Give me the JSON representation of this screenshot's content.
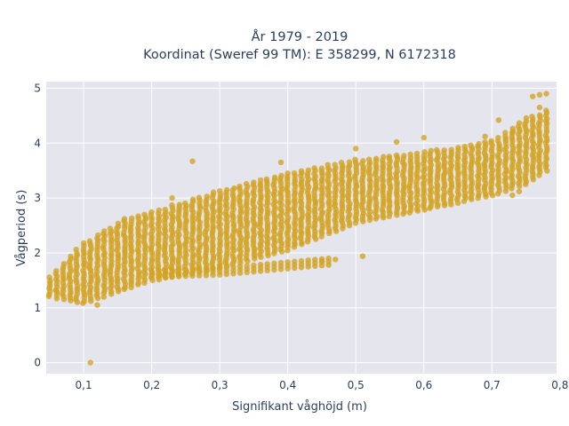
{
  "chart_data": {
    "type": "scatter",
    "title_lines": [
      "År 1979 - 2019",
      "Koordinat (Sweref 99 TM): E 358299, N 6172318"
    ],
    "xlabel": "Signifikant våghöjd (m)",
    "ylabel": "Vågperiod (s)",
    "xlim": [
      0.045,
      0.795
    ],
    "ylim": [
      -0.2,
      5.12
    ],
    "x_ticks": [
      0.1,
      0.2,
      0.3,
      0.4,
      0.5,
      0.6,
      0.7,
      0.8
    ],
    "x_tick_labels": [
      "0,1",
      "0,2",
      "0,3",
      "0,4",
      "0,5",
      "0,6",
      "0,7",
      "0,8"
    ],
    "y_ticks": [
      0,
      1,
      2,
      3,
      4,
      5
    ],
    "y_tick_labels": [
      "0",
      "1",
      "2",
      "3",
      "4",
      "5"
    ],
    "grid": true,
    "legend": false,
    "plot_bgcolor": "#e5e5ee",
    "marker_color": "#d4a320",
    "x_step": 0.01,
    "band_lower": [
      [
        0.05,
        1.2
      ],
      [
        0.1,
        1.08
      ],
      [
        0.2,
        1.5
      ],
      [
        0.3,
        1.72
      ],
      [
        0.4,
        2.05
      ],
      [
        0.5,
        2.55
      ],
      [
        0.6,
        2.78
      ],
      [
        0.7,
        3.05
      ],
      [
        0.75,
        3.25
      ],
      [
        0.78,
        3.5
      ]
    ],
    "band_upper": [
      [
        0.05,
        1.55
      ],
      [
        0.1,
        2.2
      ],
      [
        0.15,
        2.55
      ],
      [
        0.2,
        2.75
      ],
      [
        0.3,
        3.15
      ],
      [
        0.4,
        3.45
      ],
      [
        0.5,
        3.7
      ],
      [
        0.6,
        3.85
      ],
      [
        0.7,
        4.05
      ],
      [
        0.75,
        4.45
      ],
      [
        0.78,
        4.6
      ]
    ],
    "secondary_band": {
      "x_range": [
        0.2,
        0.46
      ],
      "lower": [
        [
          0.2,
          1.55
        ],
        [
          0.3,
          1.6
        ],
        [
          0.46,
          1.78
        ]
      ],
      "upper": [
        [
          0.2,
          1.72
        ],
        [
          0.3,
          1.78
        ],
        [
          0.46,
          1.92
        ]
      ]
    },
    "outliers": [
      {
        "x": 0.11,
        "y": 0.0
      },
      {
        "x": 0.26,
        "y": 3.67
      },
      {
        "x": 0.39,
        "y": 3.65
      },
      {
        "x": 0.51,
        "y": 1.94
      },
      {
        "x": 0.47,
        "y": 1.88
      },
      {
        "x": 0.45,
        "y": 1.85
      },
      {
        "x": 0.71,
        "y": 4.42
      },
      {
        "x": 0.5,
        "y": 3.9
      },
      {
        "x": 0.76,
        "y": 4.85
      },
      {
        "x": 0.77,
        "y": 4.88
      },
      {
        "x": 0.78,
        "y": 4.9
      },
      {
        "x": 0.12,
        "y": 1.05
      },
      {
        "x": 0.06,
        "y": 1.3
      },
      {
        "x": 0.16,
        "y": 2.62
      },
      {
        "x": 0.23,
        "y": 3.0
      },
      {
        "x": 0.56,
        "y": 4.02
      },
      {
        "x": 0.6,
        "y": 4.1
      },
      {
        "x": 0.69,
        "y": 4.12
      },
      {
        "x": 0.73,
        "y": 4.2
      },
      {
        "x": 0.77,
        "y": 4.65
      },
      {
        "x": 0.73,
        "y": 3.05
      },
      {
        "x": 0.74,
        "y": 3.12
      }
    ]
  }
}
